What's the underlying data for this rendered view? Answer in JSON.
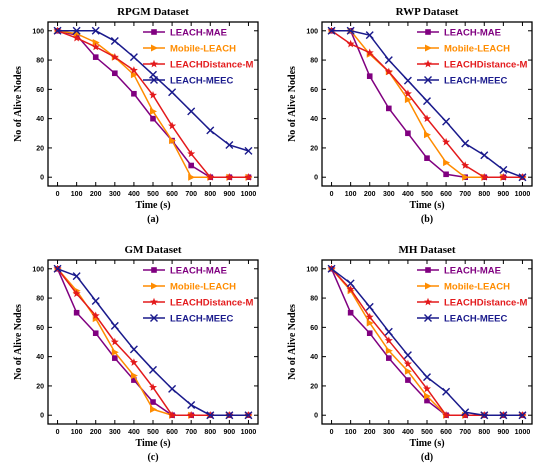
{
  "colors": {
    "LEACH-MAE": "#800080",
    "Mobile-LEACH": "#ff8c00",
    "LEACHDistance-M": "#e31a1c",
    "LEACH-MEEC": "#1a1a8c"
  },
  "markers": {
    "LEACH-MAE": "square",
    "Mobile-LEACH": "triangle-right",
    "LEACHDistance-M": "star",
    "LEACH-MEEC": "x-cross"
  },
  "chart_data": [
    {
      "type": "line",
      "title": "RPGM Dataset",
      "caption": "(a)",
      "xlabel": "Time (s)",
      "ylabel": "No of Alive Nodes",
      "xlim": [
        0,
        1000
      ],
      "ylim": [
        0,
        100
      ],
      "xticks": [
        0,
        100,
        200,
        300,
        400,
        500,
        600,
        700,
        800,
        900,
        1000
      ],
      "yticks": [
        0,
        20,
        40,
        60,
        80,
        100
      ],
      "legend_position": "top-right",
      "series": [
        {
          "name": "LEACH-MAE",
          "x": [
            0,
            100,
            200,
            300,
            400,
            500,
            600,
            700,
            800,
            900,
            1000
          ],
          "y": [
            100,
            97,
            82,
            71,
            57,
            40,
            25,
            8,
            0,
            0,
            0
          ]
        },
        {
          "name": "Mobile-LEACH",
          "x": [
            0,
            100,
            200,
            300,
            400,
            500,
            600,
            700,
            800,
            900,
            1000
          ],
          "y": [
            100,
            98,
            92,
            82,
            70,
            45,
            25,
            0,
            0,
            0,
            0
          ]
        },
        {
          "name": "LEACHDistance-M",
          "x": [
            0,
            100,
            200,
            300,
            400,
            500,
            600,
            700,
            800,
            900,
            1000
          ],
          "y": [
            100,
            95,
            89,
            82,
            73,
            56,
            35,
            16,
            0,
            0,
            0
          ]
        },
        {
          "name": "LEACH-MEEC",
          "x": [
            0,
            100,
            200,
            300,
            400,
            500,
            600,
            700,
            800,
            900,
            1000
          ],
          "y": [
            100,
            100,
            100,
            93,
            82,
            70,
            58,
            45,
            32,
            22,
            18
          ]
        }
      ]
    },
    {
      "type": "line",
      "title": "RWP Dataset",
      "caption": "(b)",
      "xlabel": "Time (s)",
      "ylabel": "No of Alive Nodes",
      "xlim": [
        0,
        1000
      ],
      "ylim": [
        0,
        100
      ],
      "xticks": [
        0,
        100,
        200,
        300,
        400,
        500,
        600,
        700,
        800,
        900,
        1000
      ],
      "yticks": [
        0,
        20,
        40,
        60,
        80,
        100
      ],
      "legend_position": "top-right",
      "series": [
        {
          "name": "LEACH-MAE",
          "x": [
            0,
            100,
            200,
            300,
            400,
            500,
            600,
            700,
            800,
            900,
            1000
          ],
          "y": [
            100,
            100,
            69,
            47,
            30,
            13,
            2,
            0,
            0,
            0,
            0
          ]
        },
        {
          "name": "Mobile-LEACH",
          "x": [
            0,
            100,
            200,
            300,
            400,
            500,
            600,
            700,
            800,
            900,
            1000
          ],
          "y": [
            100,
            100,
            84,
            72,
            53,
            29,
            10,
            0,
            0,
            0,
            0
          ]
        },
        {
          "name": "LEACHDistance-M",
          "x": [
            0,
            100,
            200,
            300,
            400,
            500,
            600,
            700,
            800,
            900,
            1000
          ],
          "y": [
            100,
            91,
            85,
            72,
            57,
            40,
            24,
            8,
            0,
            0,
            0
          ]
        },
        {
          "name": "LEACH-MEEC",
          "x": [
            0,
            100,
            200,
            300,
            400,
            500,
            600,
            700,
            800,
            900,
            1000
          ],
          "y": [
            100,
            100,
            97,
            80,
            66,
            52,
            38,
            23,
            15,
            5,
            0
          ]
        }
      ]
    },
    {
      "type": "line",
      "title": "GM Dataset",
      "caption": "(c)",
      "xlabel": "Time (s)",
      "ylabel": "No of Alive Nodes",
      "xlim": [
        0,
        1000
      ],
      "ylim": [
        0,
        100
      ],
      "xticks": [
        0,
        100,
        200,
        300,
        400,
        500,
        600,
        700,
        800,
        900,
        1000
      ],
      "yticks": [
        0,
        20,
        40,
        60,
        80,
        100
      ],
      "legend_position": "top-right",
      "series": [
        {
          "name": "LEACH-MAE",
          "x": [
            0,
            100,
            200,
            300,
            400,
            500,
            600,
            700,
            800,
            900,
            1000
          ],
          "y": [
            100,
            70,
            56,
            39,
            24,
            9,
            0,
            0,
            0,
            0,
            0
          ]
        },
        {
          "name": "Mobile-LEACH",
          "x": [
            0,
            100,
            200,
            300,
            400,
            500,
            600,
            700,
            800,
            900,
            1000
          ],
          "y": [
            100,
            85,
            66,
            43,
            27,
            4,
            0,
            0,
            0,
            0,
            0
          ]
        },
        {
          "name": "LEACHDistance-M",
          "x": [
            0,
            100,
            200,
            300,
            400,
            500,
            600,
            700,
            800,
            900,
            1000
          ],
          "y": [
            100,
            83,
            68,
            50,
            36,
            19,
            0,
            0,
            0,
            0,
            0
          ]
        },
        {
          "name": "LEACH-MEEC",
          "x": [
            0,
            100,
            200,
            300,
            400,
            500,
            600,
            700,
            800,
            900,
            1000
          ],
          "y": [
            100,
            95,
            78,
            61,
            45,
            31,
            18,
            7,
            0,
            0,
            0
          ]
        }
      ]
    },
    {
      "type": "line",
      "title": "MH Dataset",
      "caption": "(d)",
      "xlabel": "Time (s)",
      "ylabel": "No of Alive Nodes",
      "xlim": [
        0,
        1000
      ],
      "ylim": [
        0,
        100
      ],
      "xticks": [
        0,
        100,
        200,
        300,
        400,
        500,
        600,
        700,
        800,
        900,
        1000
      ],
      "yticks": [
        0,
        20,
        40,
        60,
        80,
        100
      ],
      "legend_position": "top-right",
      "series": [
        {
          "name": "LEACH-MAE",
          "x": [
            0,
            100,
            200,
            300,
            400,
            500,
            600,
            700,
            800,
            900,
            1000
          ],
          "y": [
            100,
            70,
            56,
            39,
            24,
            10,
            0,
            0,
            0,
            0,
            0
          ]
        },
        {
          "name": "Mobile-LEACH",
          "x": [
            0,
            100,
            200,
            300,
            400,
            500,
            600,
            700,
            800,
            900,
            1000
          ],
          "y": [
            100,
            85,
            63,
            44,
            30,
            13,
            0,
            0,
            0,
            0,
            0
          ]
        },
        {
          "name": "LEACHDistance-M",
          "x": [
            0,
            100,
            200,
            300,
            400,
            500,
            600,
            700,
            800,
            900,
            1000
          ],
          "y": [
            100,
            86,
            67,
            51,
            35,
            18,
            0,
            0,
            0,
            0,
            0
          ]
        },
        {
          "name": "LEACH-MEEC",
          "x": [
            0,
            100,
            200,
            300,
            400,
            500,
            600,
            700,
            800,
            900,
            1000
          ],
          "y": [
            100,
            90,
            74,
            57,
            41,
            26,
            16,
            2,
            0,
            0,
            0
          ]
        }
      ]
    }
  ]
}
